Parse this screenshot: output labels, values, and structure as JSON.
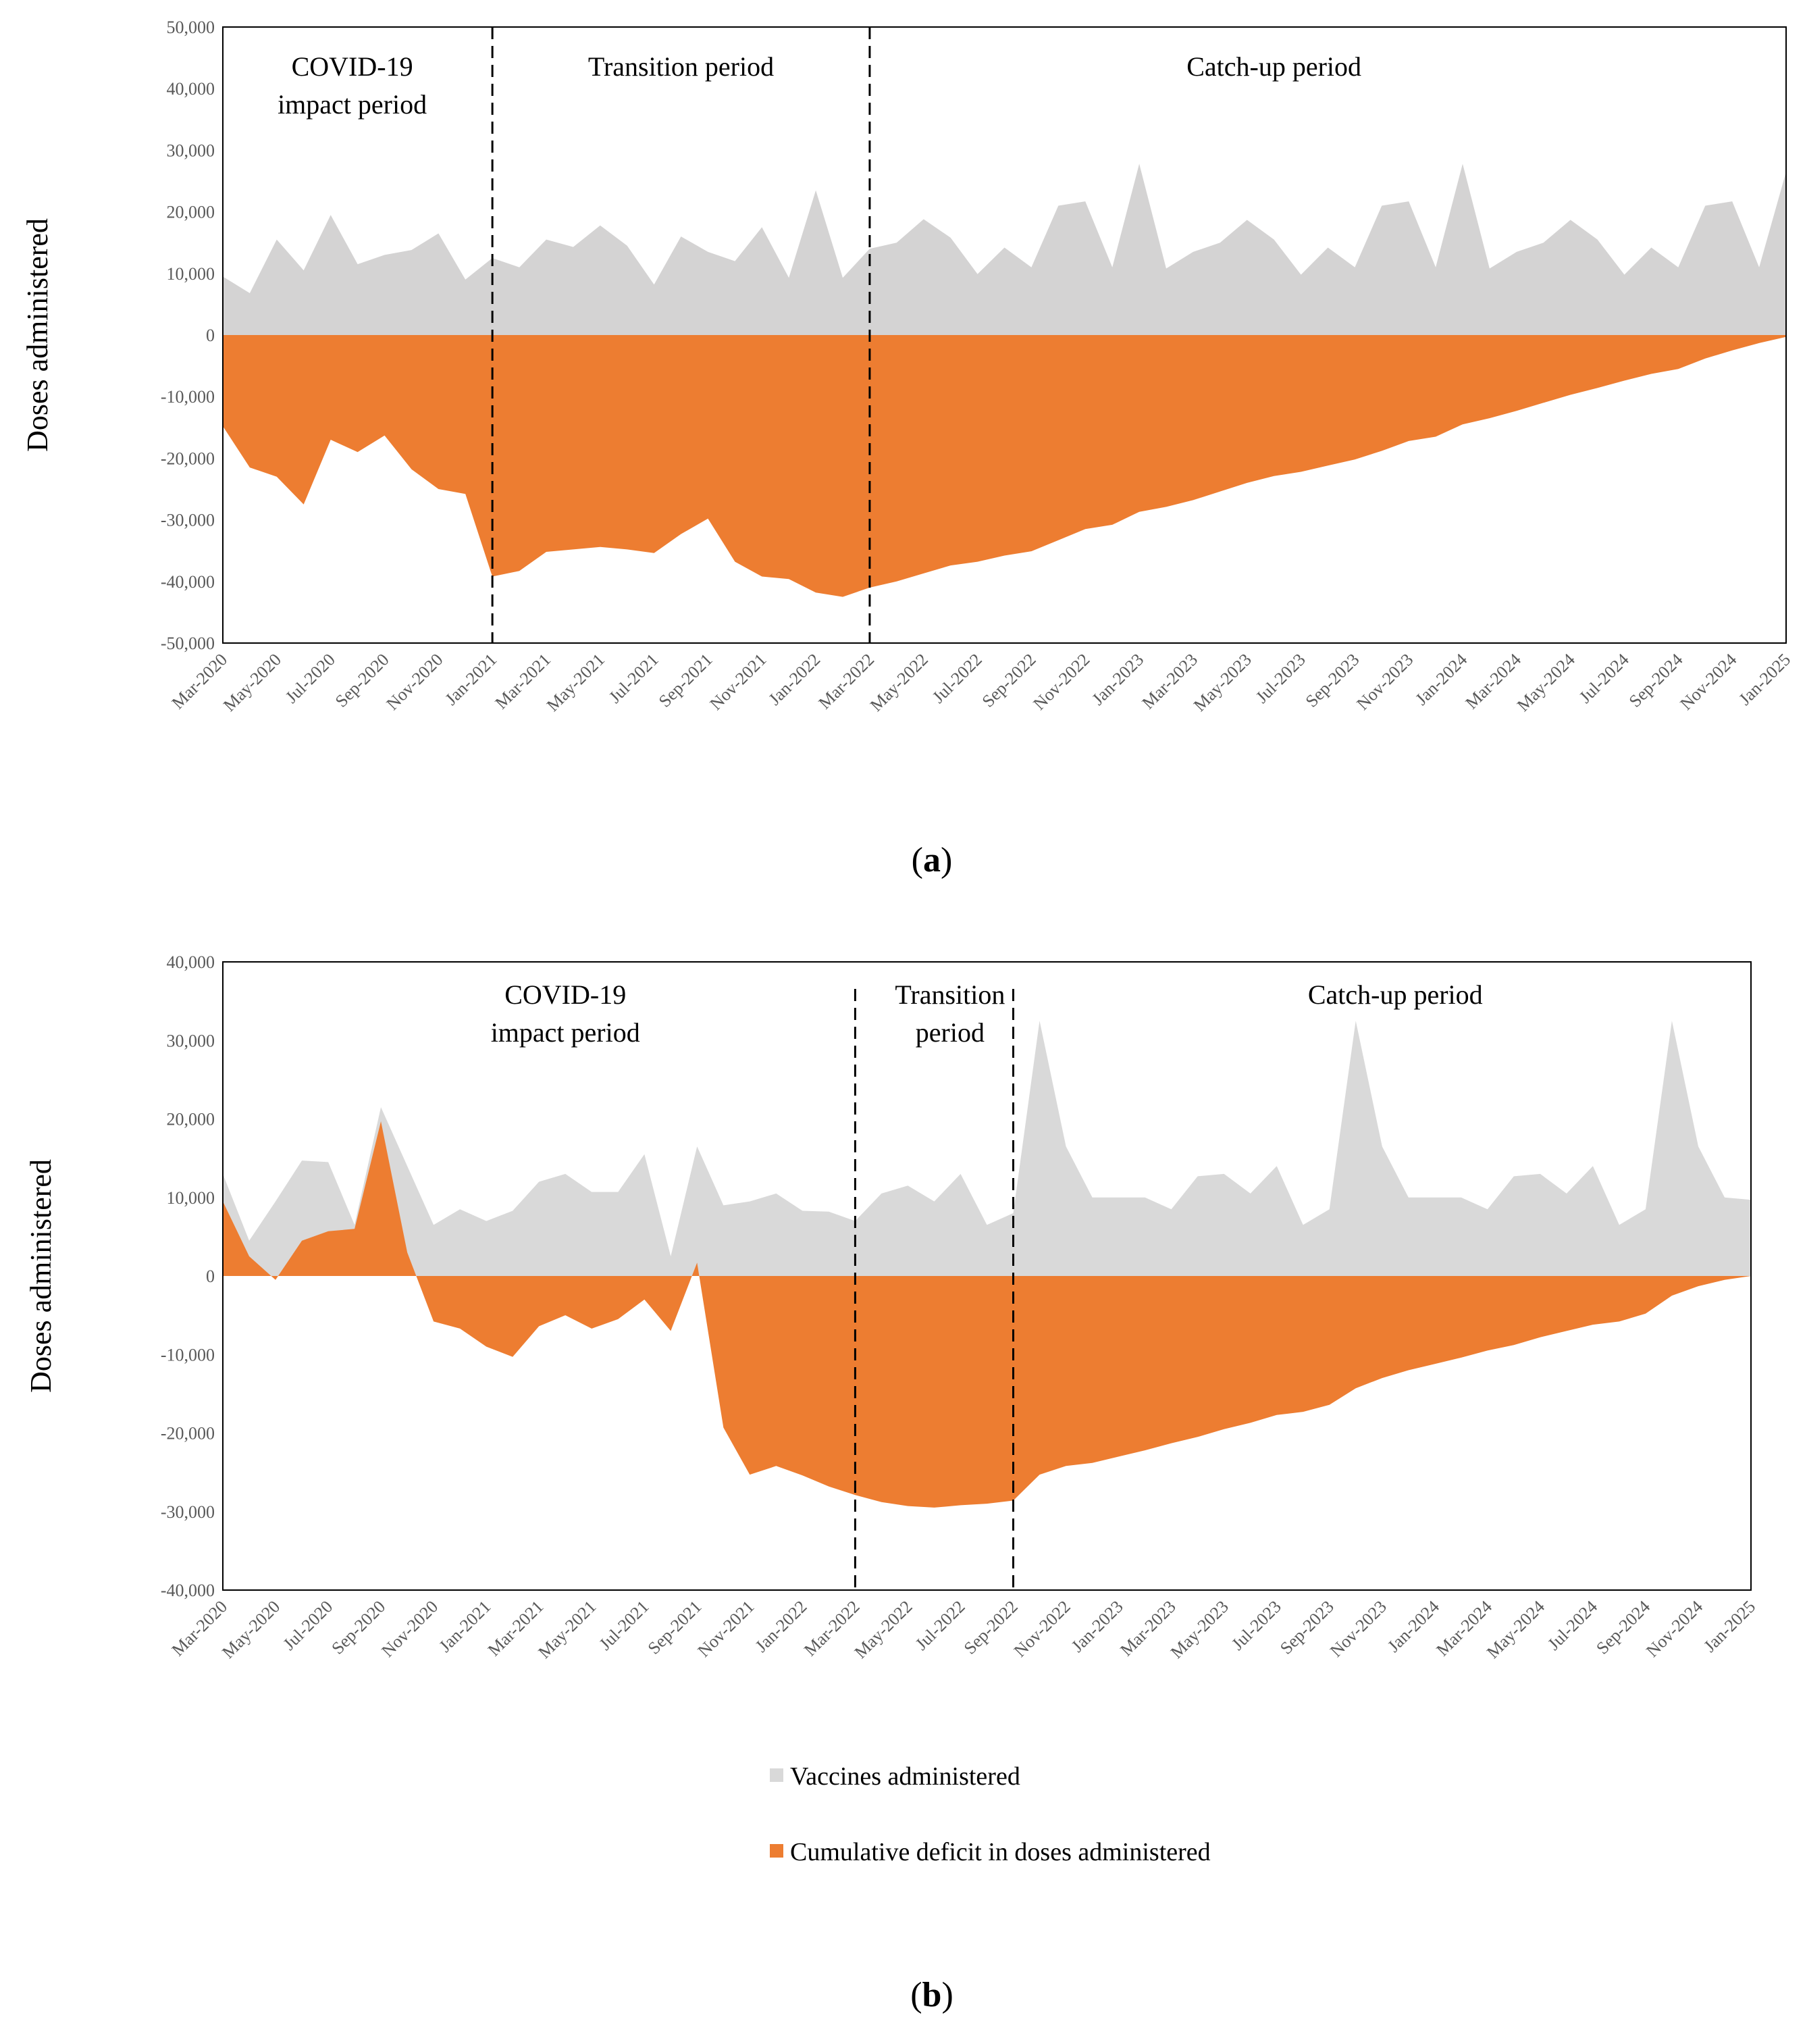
{
  "chart_data": [
    {
      "type": "area",
      "id": "a",
      "caption": "a",
      "ylabel": "Doses administered",
      "ylim": [
        -50000,
        50000
      ],
      "yticks": [
        -50000,
        -40000,
        -30000,
        -20000,
        -10000,
        0,
        10000,
        20000,
        30000,
        40000,
        50000
      ],
      "ytick_labels": [
        "-50,000",
        "-40,000",
        "-30,000",
        "-20,000",
        "-10,000",
        "0",
        "10,000",
        "20,000",
        "30,000",
        "40,000",
        "50,000"
      ],
      "xtick_labels": [
        "Mar-2020",
        "May-2020",
        "Jul-2020",
        "Sep-2020",
        "Nov-2020",
        "Jan-2021",
        "Mar-2021",
        "May-2021",
        "Jul-2021",
        "Sep-2021",
        "Nov-2021",
        "Jan-2022",
        "Mar-2022",
        "May-2022",
        "Jul-2022",
        "Sep-2022",
        "Nov-2022",
        "Jan-2023",
        "Mar-2023",
        "May-2023",
        "Jul-2023",
        "Sep-2023",
        "Nov-2023",
        "Jan-2024",
        "Mar-2024",
        "May-2024",
        "Jul-2024",
        "Sep-2024",
        "Nov-2024",
        "Jan-2025"
      ],
      "period_dividers": [
        10,
        24
      ],
      "annotations": [
        {
          "lines": [
            "COVID-19",
            "impact  period"
          ],
          "center_month": 4.8
        },
        {
          "lines": [
            "Transition   period"
          ],
          "center_month": 17
        },
        {
          "lines": [
            "Catch-up period"
          ],
          "center_month": 39
        }
      ],
      "series": [
        {
          "name": "Vaccines administered",
          "color": "#d4d3d3",
          "values": [
            9500,
            6800,
            15500,
            10500,
            19500,
            11500,
            13000,
            13800,
            16500,
            9000,
            12500,
            11000,
            15500,
            14300,
            17800,
            14500,
            8200,
            16000,
            13500,
            12000,
            17500,
            9300,
            23500,
            9300,
            14000,
            15000,
            18800,
            15800,
            9900,
            14200,
            11000,
            21000,
            21700,
            11000,
            27800,
            10800,
            13500,
            15000,
            18700,
            15500,
            9800,
            14200,
            11000,
            21000,
            21700,
            11000,
            27800,
            10800,
            13500,
            15000,
            18700,
            15500,
            9800,
            14200,
            11000,
            21000,
            21700,
            11000,
            26500
          ]
        },
        {
          "name": "Cumulative deficit in doses administered",
          "color": "#ed7d31",
          "values": [
            -14800,
            -21500,
            -23000,
            -27500,
            -17000,
            -19000,
            -16300,
            -21800,
            -25000,
            -25800,
            -39200,
            -38300,
            -35200,
            -34800,
            -34400,
            -34800,
            -35400,
            -32300,
            -29800,
            -36800,
            -39200,
            -39600,
            -41800,
            -42500,
            -41000,
            -40000,
            -38700,
            -37400,
            -36800,
            -35800,
            -35100,
            -33300,
            -31500,
            -30800,
            -28700,
            -27900,
            -26800,
            -25400,
            -24000,
            -22900,
            -22200,
            -21200,
            -20200,
            -18800,
            -17200,
            -16500,
            -14500,
            -13500,
            -12300,
            -11000,
            -9700,
            -8600,
            -7400,
            -6300,
            -5500,
            -3800,
            -2500,
            -1300,
            -300
          ]
        }
      ]
    },
    {
      "type": "area",
      "id": "b",
      "caption": "b",
      "ylabel": "Doses administered",
      "ylim": [
        -40000,
        40000
      ],
      "yticks": [
        -40000,
        -30000,
        -20000,
        -10000,
        0,
        10000,
        20000,
        30000,
        40000
      ],
      "ytick_labels": [
        "-40,000",
        "-30,000",
        "-20,000",
        "-10,000",
        "0",
        "10,000",
        "20,000",
        "30,000",
        "40,000"
      ],
      "xtick_labels": [
        "Mar-2020",
        "May-2020",
        "Jul-2020",
        "Sep-2020",
        "Nov-2020",
        "Jan-2021",
        "Mar-2021",
        "May-2021",
        "Jul-2021",
        "Sep-2021",
        "Nov-2021",
        "Jan-2022",
        "Mar-2022",
        "May-2022",
        "Jul-2022",
        "Sep-2022",
        "Nov-2022",
        "Jan-2023",
        "Mar-2023",
        "May-2023",
        "Jul-2023",
        "Sep-2023",
        "Nov-2023",
        "Jan-2024",
        "Mar-2024",
        "May-2024",
        "Jul-2024",
        "Sep-2024",
        "Nov-2024",
        "Jan-2025"
      ],
      "period_dividers": [
        24,
        30
      ],
      "annotations": [
        {
          "lines": [
            "COVID-19",
            "impact  period"
          ],
          "center_month": 13
        },
        {
          "lines": [
            "Transition",
            "period"
          ],
          "center_month": 27.6
        },
        {
          "lines": [
            "Catch-up period"
          ],
          "center_month": 44.5
        }
      ],
      "series": [
        {
          "name": "Vaccines administered",
          "color": "#d9d9d9",
          "values": [
            13000,
            4500,
            9500,
            14700,
            14500,
            6500,
            21500,
            14000,
            6500,
            8500,
            7000,
            8300,
            12000,
            13000,
            10700,
            10700,
            15500,
            2500,
            16500,
            9000,
            9500,
            10500,
            8300,
            8200,
            7000,
            10500,
            11500,
            9500,
            13000,
            6500,
            8000,
            32500,
            16500,
            10000,
            10000,
            10000,
            8500,
            12700,
            13000,
            10500,
            14000,
            6500,
            8500,
            32500,
            16500,
            10000,
            10000,
            10000,
            8500,
            12700,
            13000,
            10500,
            14000,
            6500,
            8500,
            32500,
            16500,
            10000,
            9700
          ]
        },
        {
          "name": "Cumulative deficit in doses administered",
          "color": "#ed7d31",
          "values": [
            9500,
            2500,
            -500,
            4500,
            5700,
            6000,
            19700,
            3000,
            -5800,
            -6700,
            -9000,
            -10300,
            -6400,
            -5000,
            -6700,
            -5500,
            -3000,
            -7000,
            1700,
            -19300,
            -25300,
            -24200,
            -25400,
            -26800,
            -27900,
            -28800,
            -29300,
            -29500,
            -29200,
            -29000,
            -28600,
            -25300,
            -24200,
            -23800,
            -23000,
            -22200,
            -21300,
            -20500,
            -19500,
            -18700,
            -17700,
            -17300,
            -16400,
            -14300,
            -13000,
            -12000,
            -11200,
            -10400,
            -9500,
            -8800,
            -7800,
            -7000,
            -6200,
            -5800,
            -4800,
            -2500,
            -1300,
            -500,
            0
          ]
        }
      ]
    }
  ],
  "legend": [
    {
      "label": "Vaccines administered",
      "color": "#d9d9d9"
    },
    {
      "label": "Cumulative deficit in doses administered",
      "color": "#ed7d31"
    }
  ]
}
